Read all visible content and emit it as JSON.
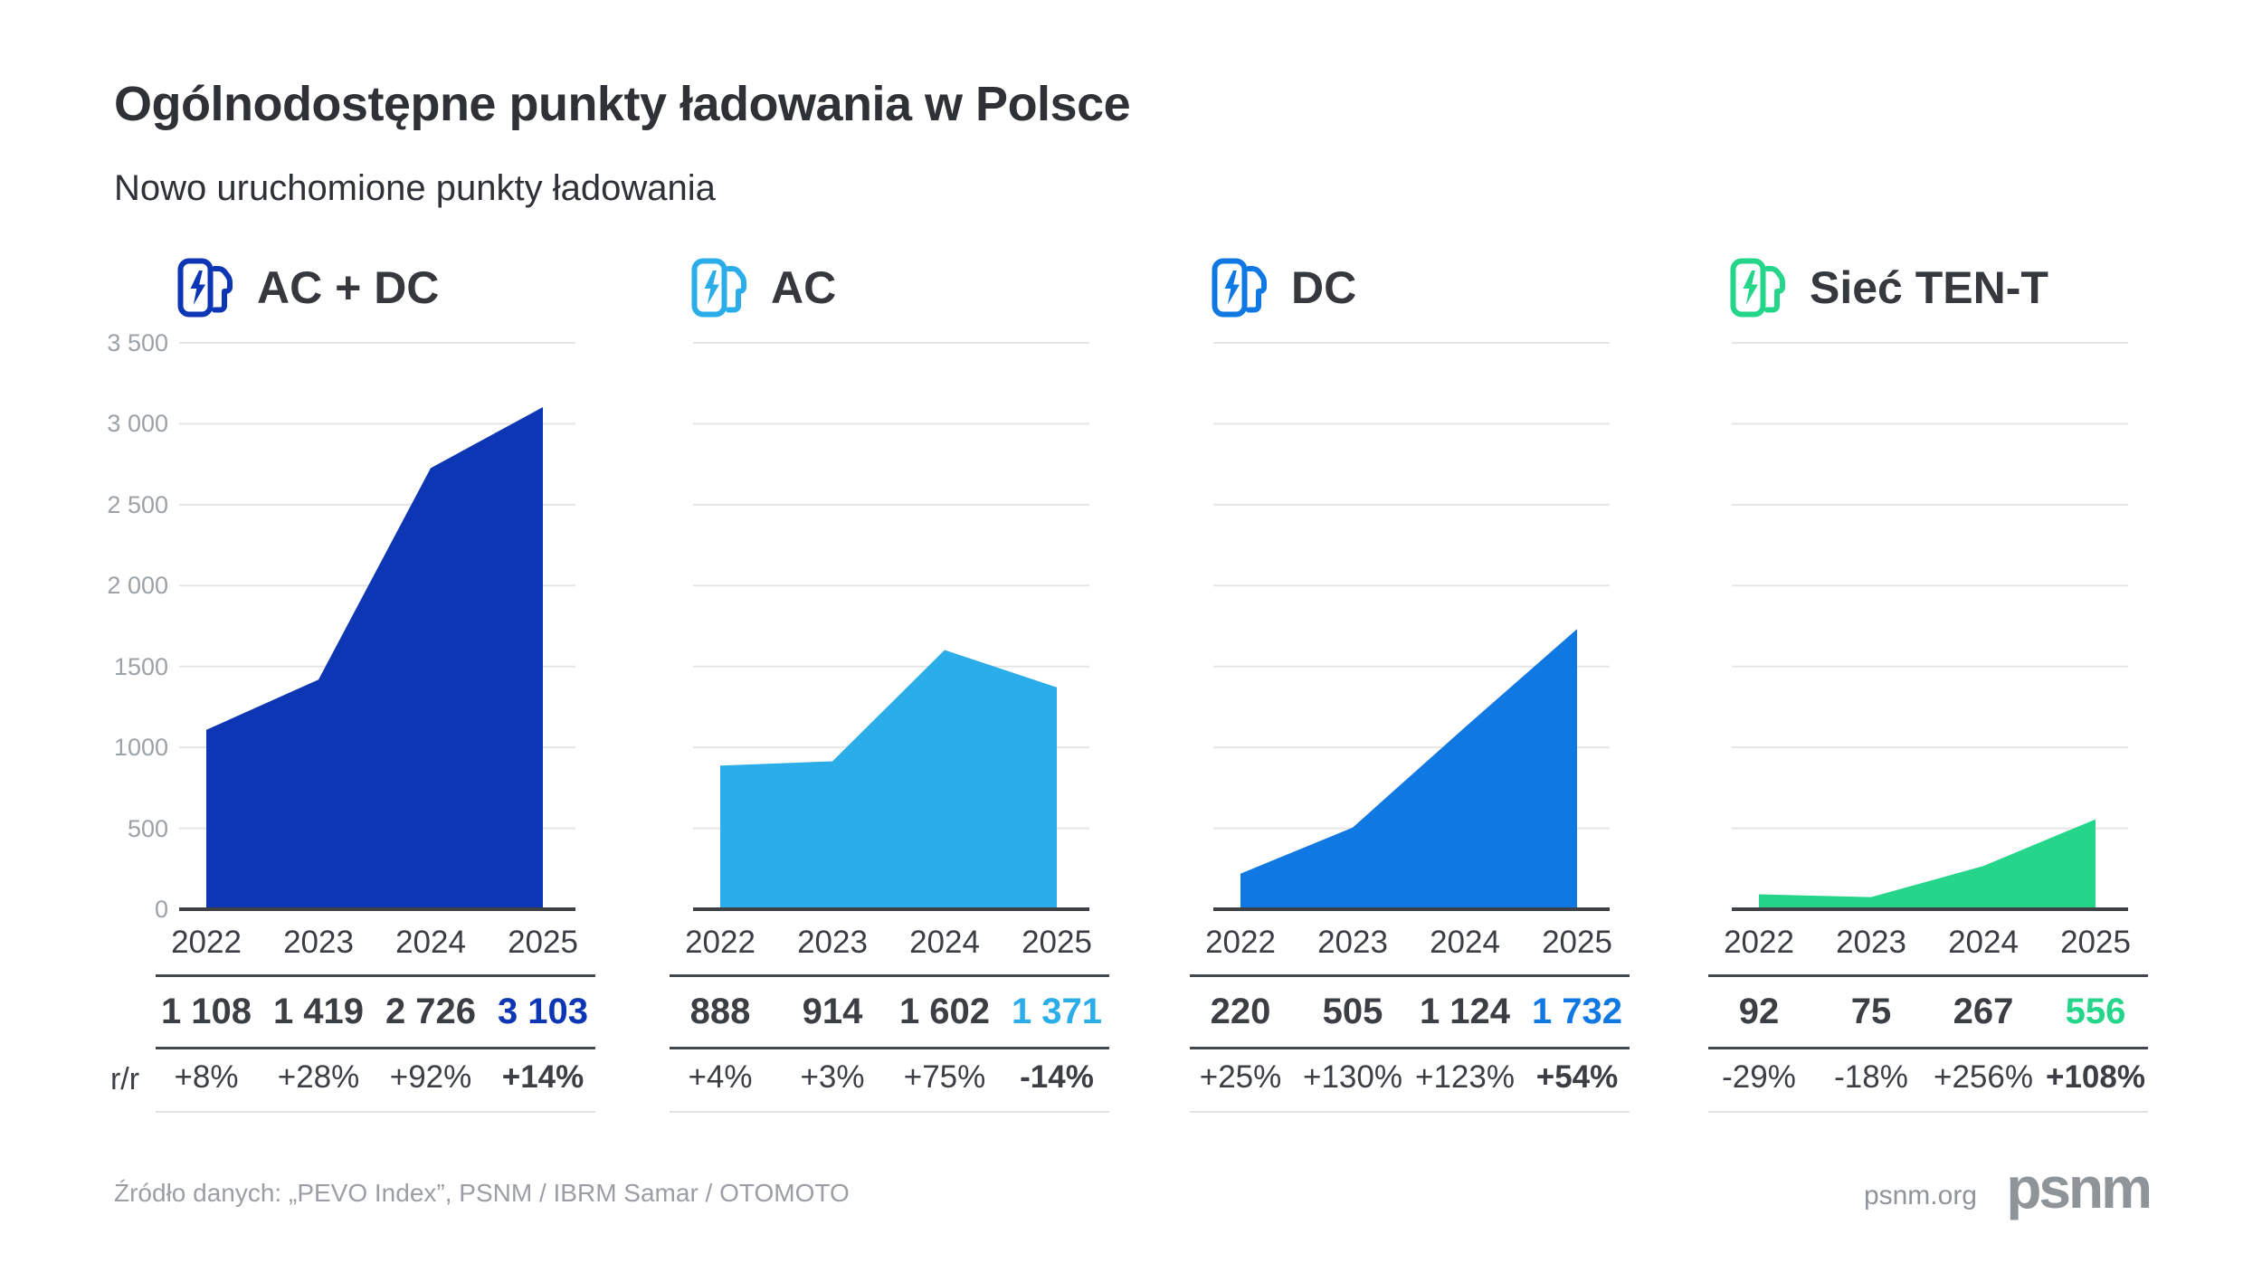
{
  "page": {
    "title": "Ogólnodostępne punkty ładowania w Polsce",
    "subtitle": "Nowo uruchomione punkty ładowania",
    "row_label": "r/r",
    "source": "Źródło danych: „PEVO Index”, PSNM / IBRM Samar / OTOMOTO",
    "website": "psnm.org",
    "logo": "psnm"
  },
  "axis": {
    "tick_labels": [
      "3 500",
      "3 000",
      "2 500",
      "2 000",
      "1500",
      "1000",
      "500",
      "0"
    ],
    "min": 0,
    "max": 3500,
    "step": 500
  },
  "chart_data": [
    {
      "type": "area",
      "title": "AC + DC",
      "icon": "ev-charger-icon",
      "accent": "#0d36b5",
      "categories": [
        "2022",
        "2023",
        "2024",
        "2025"
      ],
      "values": [
        1108,
        1419,
        2726,
        3103
      ],
      "values_formatted": [
        "1 108",
        "1 419",
        "2 726",
        "3 103"
      ],
      "yoy": [
        "+8%",
        "+28%",
        "+92%",
        "+14%"
      ],
      "ylim": [
        0,
        3500
      ],
      "grid": true,
      "legend": "none"
    },
    {
      "type": "area",
      "title": "AC",
      "icon": "ev-charger-icon",
      "accent": "#2bade9",
      "categories": [
        "2022",
        "2023",
        "2024",
        "2025"
      ],
      "values": [
        888,
        914,
        1602,
        1371
      ],
      "values_formatted": [
        "888",
        "914",
        "1 602",
        "1 371"
      ],
      "yoy": [
        "+4%",
        "+3%",
        "+75%",
        "-14%"
      ],
      "ylim": [
        0,
        3500
      ],
      "grid": true,
      "legend": "none"
    },
    {
      "type": "area",
      "title": "DC",
      "icon": "ev-charger-icon",
      "accent": "#0f78e2",
      "categories": [
        "2022",
        "2023",
        "2024",
        "2025"
      ],
      "values": [
        220,
        505,
        1124,
        1732
      ],
      "values_formatted": [
        "220",
        "505",
        "1 124",
        "1 732"
      ],
      "yoy": [
        "+25%",
        "+130%",
        "+123%",
        "+54%"
      ],
      "ylim": [
        0,
        3500
      ],
      "grid": true,
      "legend": "none"
    },
    {
      "type": "area",
      "title": "Sieć TEN-T",
      "icon": "ev-charger-icon",
      "accent": "#25d589",
      "categories": [
        "2022",
        "2023",
        "2024",
        "2025"
      ],
      "values": [
        92,
        75,
        267,
        556
      ],
      "values_formatted": [
        "92",
        "75",
        "267",
        "556"
      ],
      "yoy": [
        "-29%",
        "-18%",
        "+256%",
        "+108%"
      ],
      "ylim": [
        0,
        3500
      ],
      "grid": true,
      "legend": "none"
    }
  ]
}
